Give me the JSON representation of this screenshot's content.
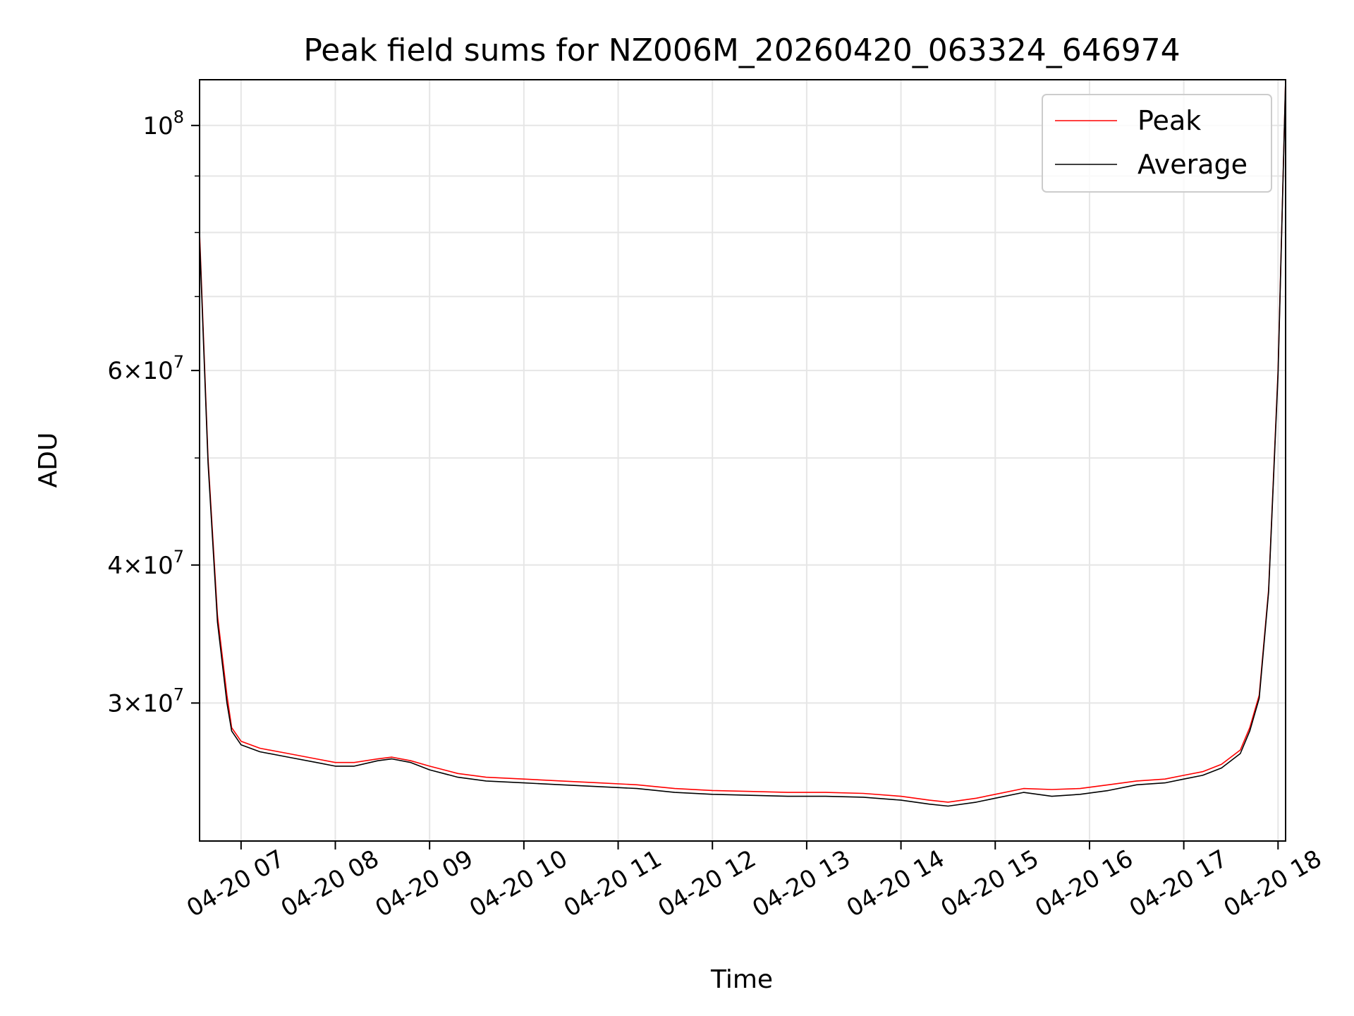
{
  "chart_data": {
    "type": "line",
    "title": "Peak field sums for NZ006M_20260420_063324_646974",
    "xlabel": "Time",
    "ylabel": "ADU",
    "yscale": "log",
    "xlim_hours": [
      6.56,
      18.08
    ],
    "ylim": [
      22500000,
      110000000
    ],
    "grid": true,
    "legend_position": "top-right",
    "x_ticks": [
      {
        "value": 7,
        "label": "04-20 07"
      },
      {
        "value": 8,
        "label": "04-20 08"
      },
      {
        "value": 9,
        "label": "04-20 09"
      },
      {
        "value": 10,
        "label": "04-20 10"
      },
      {
        "value": 11,
        "label": "04-20 11"
      },
      {
        "value": 12,
        "label": "04-20 12"
      },
      {
        "value": 13,
        "label": "04-20 13"
      },
      {
        "value": 14,
        "label": "04-20 14"
      },
      {
        "value": 15,
        "label": "04-20 15"
      },
      {
        "value": 16,
        "label": "04-20 16"
      },
      {
        "value": 17,
        "label": "04-20 17"
      },
      {
        "value": 18,
        "label": "04-20 18"
      }
    ],
    "y_major_ticks": [
      {
        "value": 100000000,
        "base": "10",
        "exp": "8",
        "mant": ""
      },
      {
        "value": 60000000,
        "base": "10",
        "exp": "7",
        "mant": "6"
      },
      {
        "value": 40000000,
        "base": "10",
        "exp": "7",
        "mant": "4"
      },
      {
        "value": 30000000,
        "base": "10",
        "exp": "7",
        "mant": "3"
      }
    ],
    "y_minor_ticks": [
      90000000,
      80000000,
      70000000,
      50000000
    ],
    "series": [
      {
        "name": "Peak",
        "color": "#ff0000",
        "x": [
          6.56,
          6.65,
          6.75,
          6.85,
          6.9,
          7.0,
          7.2,
          7.5,
          7.8,
          8.0,
          8.2,
          8.45,
          8.6,
          8.8,
          9.0,
          9.3,
          9.6,
          10.0,
          10.4,
          10.8,
          11.2,
          11.6,
          12.0,
          12.4,
          12.8,
          13.2,
          13.6,
          14.0,
          14.3,
          14.5,
          14.8,
          15.0,
          15.3,
          15.6,
          15.9,
          16.2,
          16.5,
          16.8,
          17.0,
          17.2,
          17.4,
          17.6,
          17.7,
          17.8,
          17.9,
          18.0,
          18.08
        ],
        "values": [
          80000000,
          50000000,
          36000000,
          30500000,
          28500000,
          27700000,
          27300000,
          27000000,
          26700000,
          26500000,
          26500000,
          26700000,
          26800000,
          26600000,
          26300000,
          25900000,
          25700000,
          25600000,
          25500000,
          25400000,
          25300000,
          25100000,
          25000000,
          24950000,
          24900000,
          24900000,
          24850000,
          24700000,
          24500000,
          24400000,
          24600000,
          24800000,
          25100000,
          25050000,
          25100000,
          25300000,
          25500000,
          25600000,
          25800000,
          26000000,
          26400000,
          27200000,
          28500000,
          30500000,
          38000000,
          60000000,
          110000000
        ]
      },
      {
        "name": "Average",
        "color": "#000000",
        "x": [
          6.56,
          6.65,
          6.75,
          6.85,
          6.9,
          7.0,
          7.2,
          7.5,
          7.8,
          8.0,
          8.2,
          8.45,
          8.6,
          8.8,
          9.0,
          9.3,
          9.6,
          10.0,
          10.4,
          10.8,
          11.2,
          11.6,
          12.0,
          12.4,
          12.8,
          13.2,
          13.6,
          14.0,
          14.3,
          14.5,
          14.8,
          15.0,
          15.3,
          15.6,
          15.9,
          16.2,
          16.5,
          16.8,
          17.0,
          17.2,
          17.4,
          17.6,
          17.7,
          17.8,
          17.9,
          18.0,
          18.08
        ],
        "values": [
          79000000,
          49500000,
          35500000,
          30000000,
          28300000,
          27500000,
          27100000,
          26800000,
          26500000,
          26300000,
          26300000,
          26600000,
          26700000,
          26500000,
          26100000,
          25700000,
          25500000,
          25400000,
          25300000,
          25200000,
          25100000,
          24900000,
          24800000,
          24750000,
          24700000,
          24700000,
          24650000,
          24500000,
          24300000,
          24200000,
          24400000,
          24600000,
          24900000,
          24700000,
          24800000,
          25000000,
          25300000,
          25400000,
          25600000,
          25800000,
          26200000,
          27000000,
          28300000,
          30300000,
          37800000,
          59500000,
          110000000
        ]
      }
    ]
  }
}
